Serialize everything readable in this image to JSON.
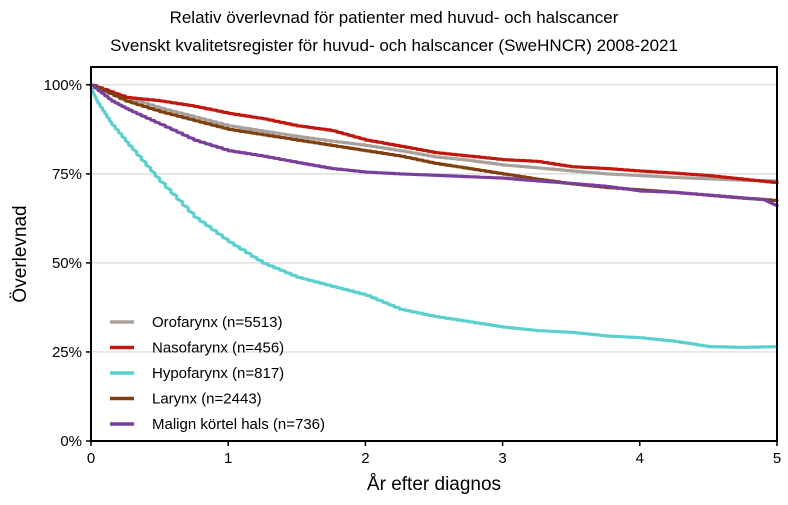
{
  "chart_data": {
    "type": "line",
    "title": "Relativ överlevnad för patienter med huvud- och halscancer",
    "subtitle": "Svenskt kvalitetsregister för huvud- och halscancer (SweHNCR) 2008-2021",
    "xlabel": "År efter diagnos",
    "ylabel": "Överlevnad",
    "xlim": [
      0,
      5
    ],
    "ylim": [
      0,
      105
    ],
    "xticks": [
      0,
      1,
      2,
      3,
      4,
      5
    ],
    "xtick_labels": [
      "0",
      "1",
      "2",
      "3",
      "4",
      "5"
    ],
    "yticks": [
      0,
      25,
      50,
      75,
      100
    ],
    "ytick_labels": [
      "0%",
      "25%",
      "50%",
      "75%",
      "100%"
    ],
    "grid": "horizontal",
    "legend_position": "bottom-left",
    "series": [
      {
        "name": "Orofarynx (n=5513)",
        "color": "#a8a09a",
        "x": [
          0,
          0.25,
          0.5,
          0.75,
          1,
          1.25,
          1.5,
          1.75,
          2,
          2.25,
          2.5,
          2.75,
          3,
          3.25,
          3.5,
          3.75,
          4,
          4.25,
          4.5,
          4.75,
          5
        ],
        "y": [
          100,
          96.5,
          93.5,
          91,
          88.5,
          87,
          85.5,
          84.2,
          83,
          81.5,
          79.8,
          78.8,
          77.5,
          76.7,
          75.8,
          75,
          74.5,
          74,
          73.6,
          73.2,
          73
        ]
      },
      {
        "name": "Nasofarynx (n=456)",
        "color": "#c0170e",
        "x": [
          0,
          0.25,
          0.5,
          0.75,
          1,
          1.25,
          1.5,
          1.75,
          2,
          2.25,
          2.5,
          2.75,
          3,
          3.25,
          3.5,
          3.75,
          4,
          4.25,
          4.5,
          4.75,
          5
        ],
        "y": [
          100,
          96.5,
          95.5,
          94,
          92,
          90.5,
          88.5,
          87.2,
          84.5,
          82.8,
          81,
          80,
          79,
          78.5,
          77,
          76.5,
          75.8,
          75.2,
          74.5,
          73.5,
          72.5
        ]
      },
      {
        "name": "Hypofarynx (n=817)",
        "color": "#5ccfcf",
        "x": [
          0,
          0.05,
          0.15,
          0.3,
          0.5,
          0.75,
          1,
          1.25,
          1.5,
          1.75,
          2,
          2.25,
          2.5,
          2.75,
          3,
          3.25,
          3.5,
          3.75,
          4,
          4.25,
          4.5,
          4.75,
          5
        ],
        "y": [
          99,
          95,
          89,
          82,
          73,
          63,
          56,
          50,
          46,
          43.5,
          41,
          37,
          35,
          33.5,
          32,
          31,
          30.5,
          29.5,
          29,
          28,
          26.5,
          26.3,
          26.5
        ]
      },
      {
        "name": "Larynx (n=2443)",
        "color": "#7f3f0f",
        "x": [
          0,
          0.25,
          0.5,
          0.75,
          1,
          1.25,
          1.5,
          1.75,
          2,
          2.25,
          2.5,
          2.75,
          3,
          3.25,
          3.5,
          3.75,
          4,
          4.25,
          4.5,
          4.75,
          5
        ],
        "y": [
          100,
          95.5,
          92.5,
          90,
          87.5,
          86,
          84.5,
          83,
          81.5,
          80,
          78,
          76.5,
          75,
          73.5,
          72.2,
          71.2,
          70.5,
          69.8,
          69,
          68.2,
          67.5
        ]
      },
      {
        "name": "Malign körtel hals (n=736)",
        "color": "#7a3f9a",
        "x": [
          0,
          0.15,
          0.3,
          0.5,
          0.75,
          1,
          1.25,
          1.5,
          1.75,
          2,
          2.25,
          2.5,
          2.75,
          3,
          3.25,
          3.5,
          3.75,
          4,
          4.25,
          4.5,
          4.75,
          4.9,
          5
        ],
        "y": [
          100,
          95.5,
          92.5,
          89,
          84.5,
          81.5,
          80,
          78.2,
          76.5,
          75.5,
          75,
          74.6,
          74.2,
          73.8,
          73,
          72.3,
          71.5,
          70.2,
          69.8,
          69,
          68.2,
          67.8,
          66
        ]
      }
    ]
  }
}
